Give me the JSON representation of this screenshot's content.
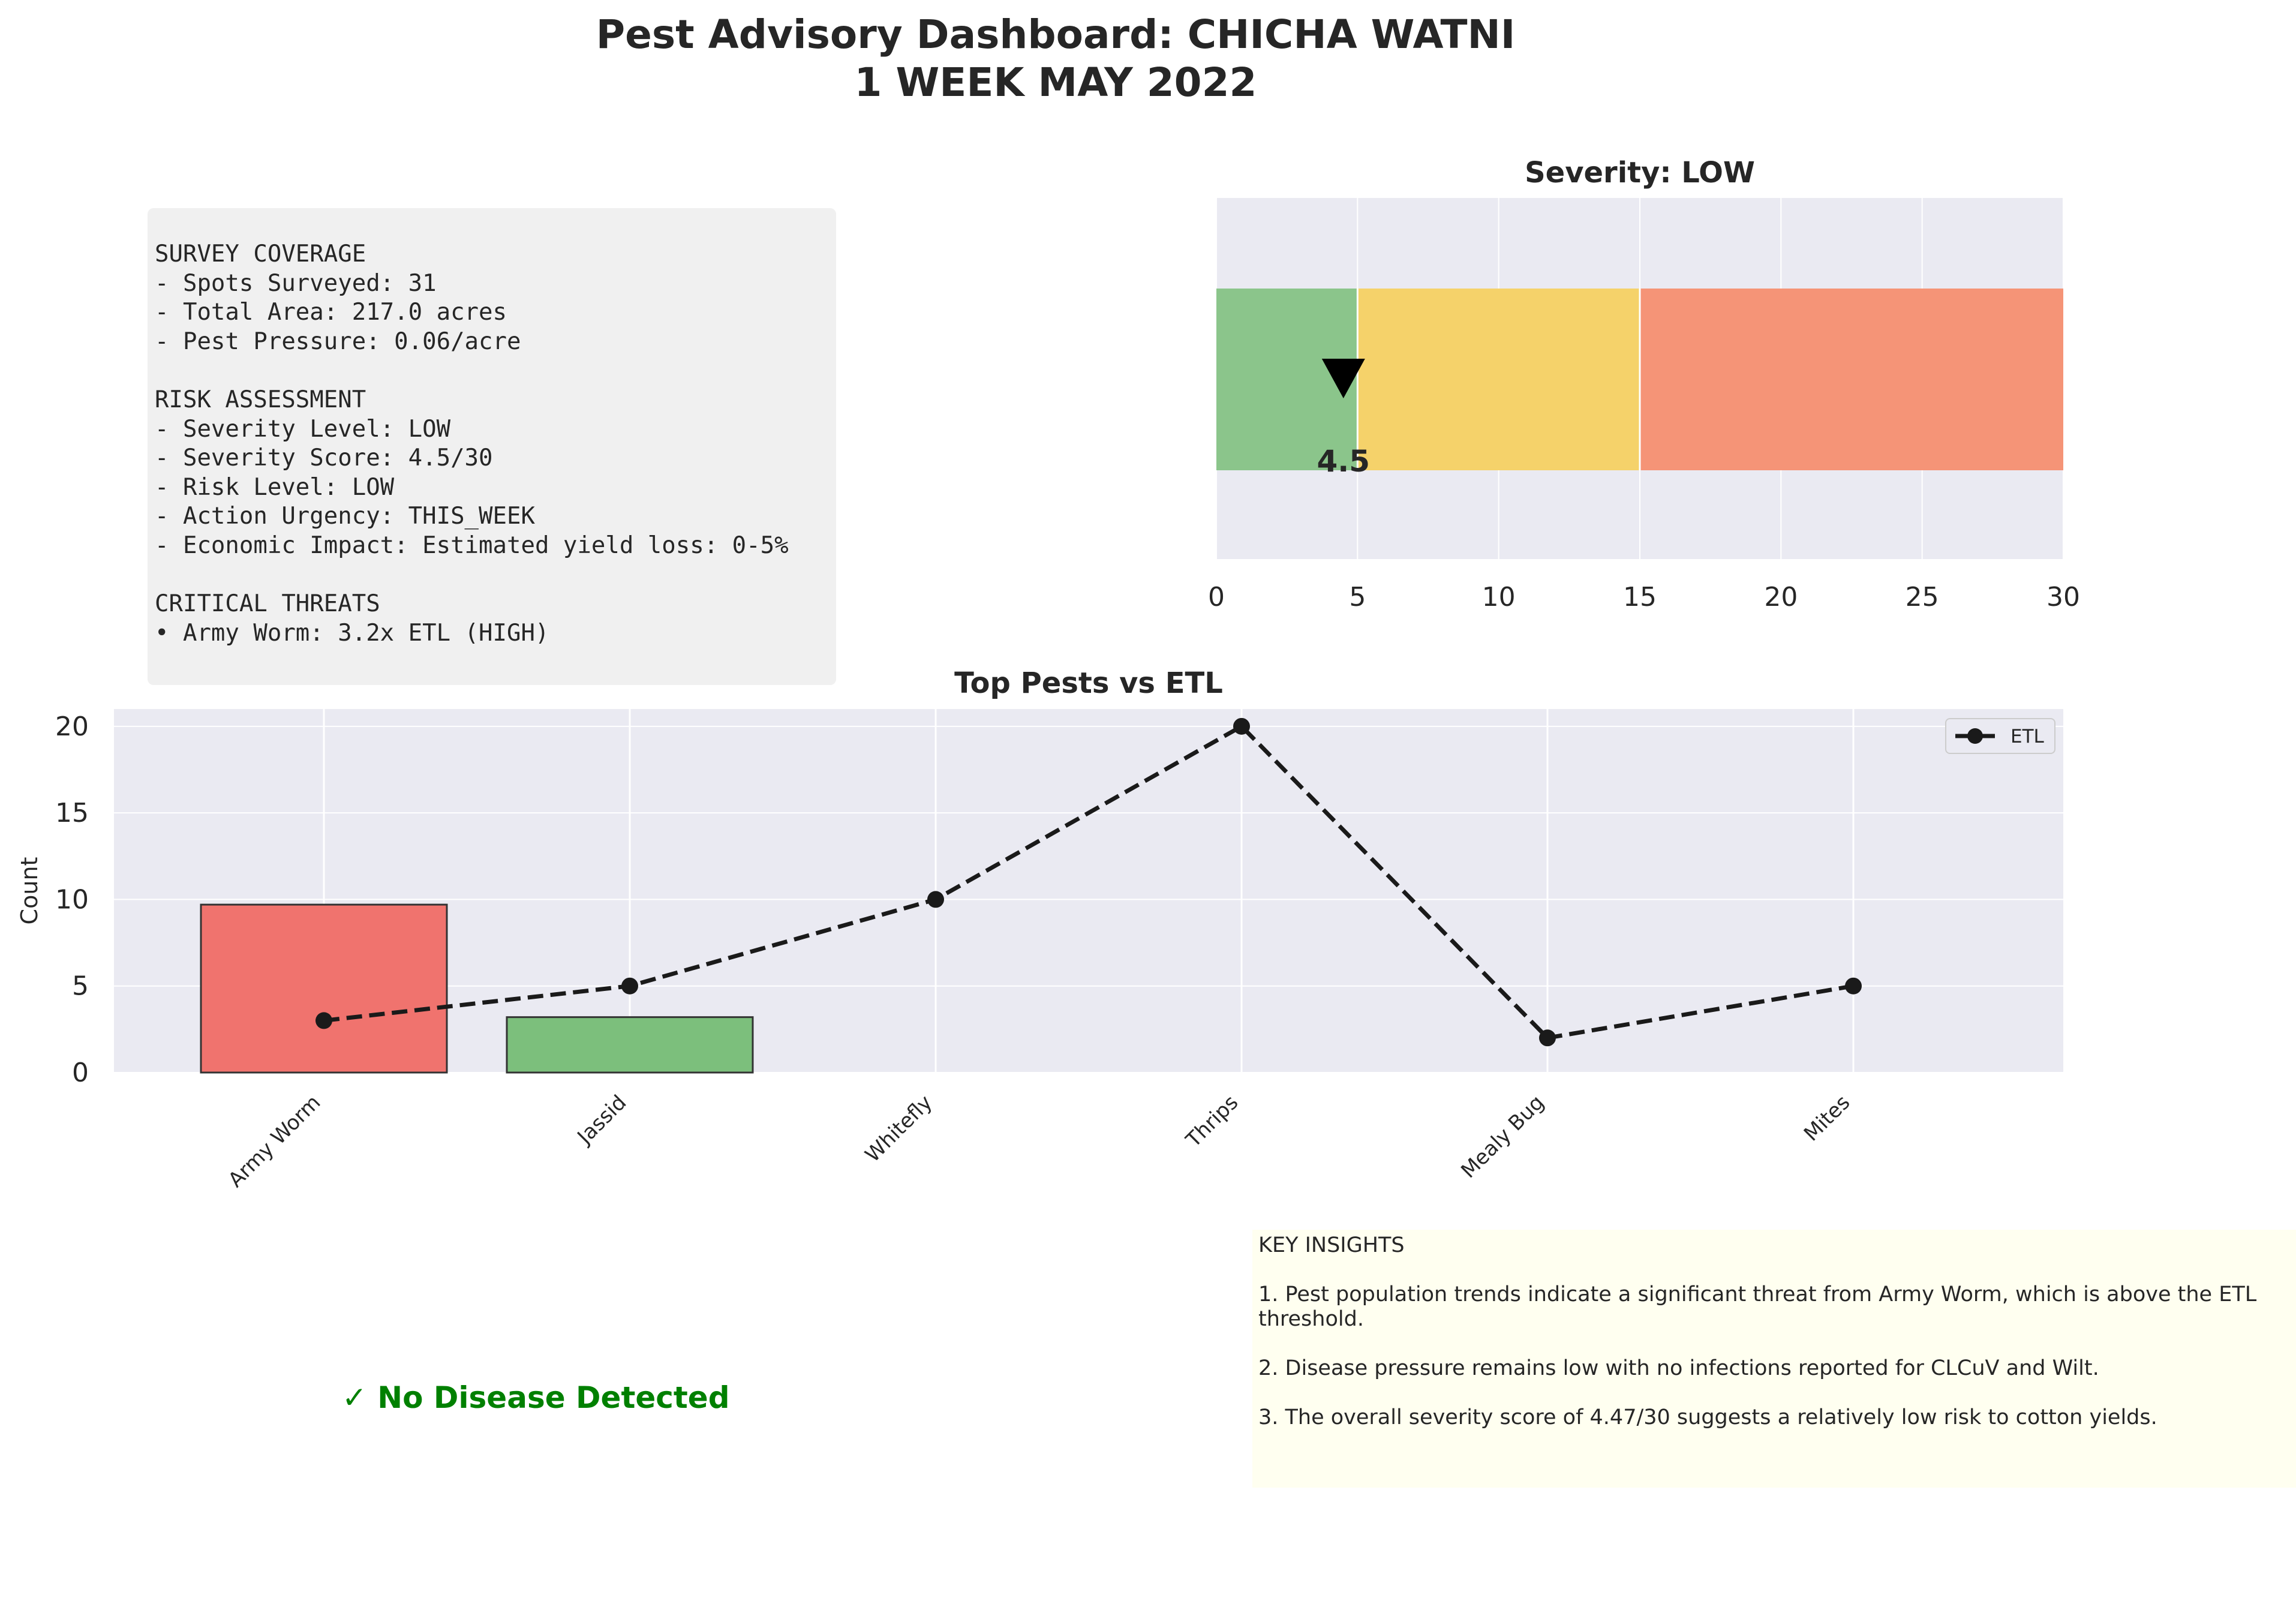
{
  "title": {
    "line1": "Pest Advisory Dashboard: CHICHA WATNI",
    "line2": "1 WEEK MAY 2022"
  },
  "summary": {
    "lines": [
      "SURVEY COVERAGE",
      "- Spots Surveyed: 31",
      "- Total Area: 217.0 acres",
      "- Pest Pressure: 0.06/acre",
      "",
      "RISK ASSESSMENT",
      "- Severity Level: LOW",
      "- Severity Score: 4.5/30",
      "- Risk Level: LOW",
      "- Action Urgency: THIS_WEEK",
      "- Economic Impact: Estimated yield loss: 0-5%",
      "",
      "CRITICAL THREATS",
      "• Army Worm: 3.2x ETL (HIGH)"
    ]
  },
  "chart_data": [
    {
      "type": "bar",
      "title": "Severity: LOW",
      "xlim": [
        0,
        30
      ],
      "xticks": [
        0,
        5,
        10,
        15,
        20,
        25,
        30
      ],
      "bands": [
        {
          "from": 0,
          "to": 5,
          "color": "#8bc58b"
        },
        {
          "from": 5,
          "to": 15,
          "color": "#f5d26a"
        },
        {
          "from": 15,
          "to": 30,
          "color": "#f59477"
        }
      ],
      "marker_value": 4.5,
      "value_label": "4.5"
    },
    {
      "type": "bar",
      "title": "Top Pests vs ETL",
      "ylabel": "Count",
      "xlabel": "",
      "ylim": [
        0,
        21
      ],
      "yticks": [
        0,
        5,
        10,
        15,
        20
      ],
      "categories": [
        "Army Worm",
        "Jassid",
        "Whitefly",
        "Thrips",
        "Mealy Bug",
        "Mites"
      ],
      "series": [
        {
          "name": "Count",
          "values": [
            9.7,
            3.2,
            0,
            0,
            0,
            0
          ],
          "colors": [
            "#f0736e",
            "#7cbf7c",
            "#7cbf7c",
            "#7cbf7c",
            "#7cbf7c",
            "#7cbf7c"
          ]
        },
        {
          "name": "ETL",
          "values": [
            3,
            5,
            10,
            20,
            2,
            5
          ],
          "color": "#1a1a1a",
          "style": "dashed-line-with-markers"
        }
      ],
      "legend": {
        "label": "ETL",
        "position": "top-right"
      }
    }
  ],
  "disease": {
    "status": "✓ No Disease Detected",
    "color": "#008000"
  },
  "insights": {
    "heading": "KEY INSIGHTS",
    "items": [
      "1. Pest population trends indicate a significant threat from Army Worm, which is above the ETL threshold.",
      "2. Disease pressure remains low with no infections reported for CLCuV and Wilt.",
      "3. The overall severity score of 4.47/30 suggests a relatively low risk to cotton yields."
    ]
  }
}
